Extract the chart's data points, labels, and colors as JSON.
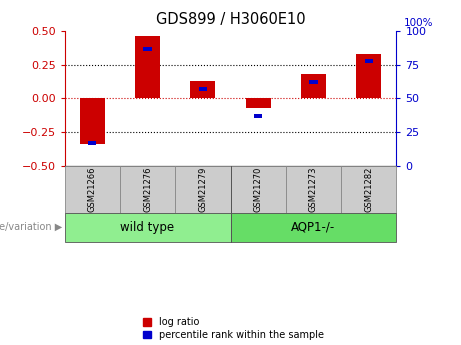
{
  "title": "GDS899 / H3060E10",
  "samples": [
    "GSM21266",
    "GSM21276",
    "GSM21279",
    "GSM21270",
    "GSM21273",
    "GSM21282"
  ],
  "log_ratio": [
    -0.34,
    0.46,
    0.13,
    -0.07,
    0.18,
    0.33
  ],
  "percentile_rank": [
    17,
    87,
    57,
    37,
    62,
    78
  ],
  "groups": [
    {
      "label": "wild type",
      "color": "#90ee90"
    },
    {
      "label": "AQP1-/-",
      "color": "#66dd66"
    }
  ],
  "bar_color_red": "#cc0000",
  "bar_color_blue": "#0000cc",
  "left_ylim": [
    -0.5,
    0.5
  ],
  "right_ylim": [
    0,
    100
  ],
  "left_yticks": [
    -0.5,
    -0.25,
    0,
    0.25,
    0.5
  ],
  "right_yticks": [
    0,
    25,
    50,
    75,
    100
  ],
  "background_color": "#ffffff",
  "axis_bg": "#ffffff",
  "legend_label_red": "log ratio",
  "legend_label_blue": "percentile rank within the sample",
  "genotype_label": "genotype/variation",
  "bar_width": 0.45,
  "blue_bar_width": 0.15,
  "blue_bar_height": 0.03
}
